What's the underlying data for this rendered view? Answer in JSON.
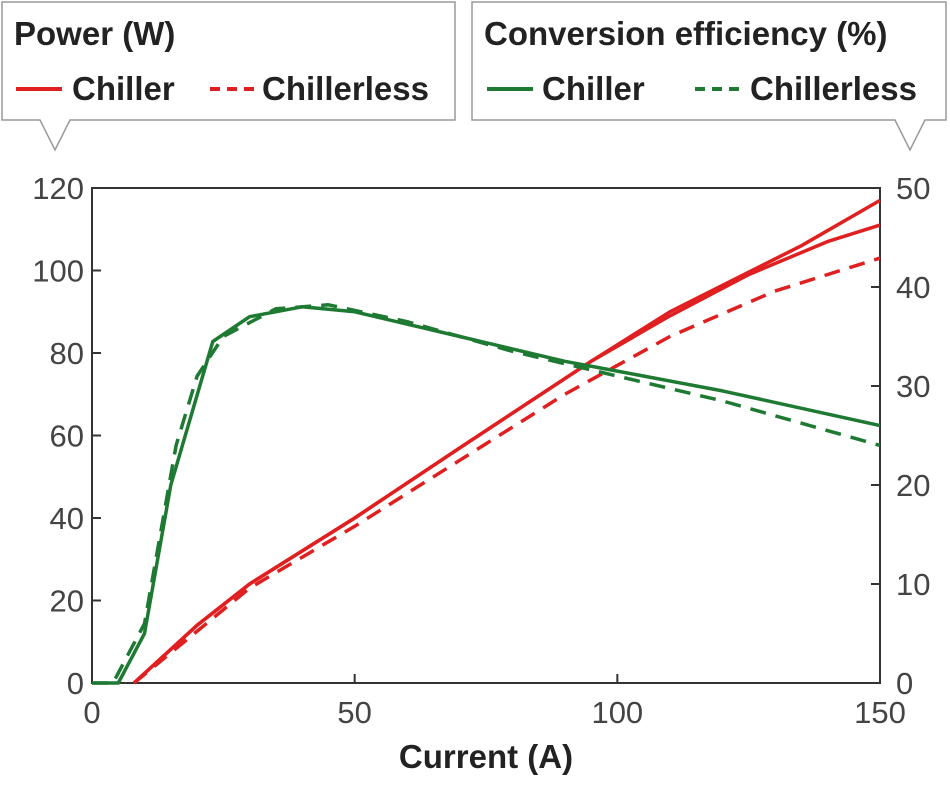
{
  "chart_data": {
    "type": "line",
    "xlabel": "Current (A)",
    "xlim": [
      0,
      150
    ],
    "xticks": [
      0,
      50,
      100,
      150
    ],
    "ylim_left": [
      0,
      120
    ],
    "yticks_left": [
      0,
      20,
      40,
      60,
      80,
      100,
      120
    ],
    "ylim_right": [
      0,
      50
    ],
    "yticks_right": [
      0,
      10,
      20,
      30,
      40,
      50
    ],
    "grid": false,
    "legends": [
      {
        "title": "Power (W)",
        "entries": [
          {
            "label": "Chiller",
            "style": "solid"
          },
          {
            "label": "Chillerless",
            "style": "dashed"
          }
        ],
        "color": "#e02020",
        "placement": "top-left"
      },
      {
        "title": "Conversion efficiency (%)",
        "entries": [
          {
            "label": "Chiller",
            "style": "solid"
          },
          {
            "label": "Chillerless",
            "style": "dashed"
          }
        ],
        "color": "#1e7a32",
        "placement": "top-right"
      }
    ],
    "series": [
      {
        "name": "Chiller",
        "quantity": "power",
        "axis": "left",
        "color": "#e02020",
        "dash": false,
        "x": [
          8,
          20,
          30,
          50,
          70,
          95,
          110,
          135,
          150
        ],
        "y": [
          0,
          14,
          24,
          40,
          57,
          78,
          90,
          106,
          117
        ]
      },
      {
        "name": "Chiller",
        "quantity": "power",
        "axis": "left",
        "color": "#e02020",
        "dash": false,
        "x": [
          8,
          20,
          30,
          50,
          70,
          95,
          110,
          125,
          140,
          150
        ],
        "y": [
          0,
          14,
          24,
          40,
          57,
          78,
          89,
          99,
          107,
          111
        ]
      },
      {
        "name": "Chillerless",
        "quantity": "power",
        "axis": "left",
        "color": "#e02020",
        "dash": true,
        "x": [
          8,
          30,
          50,
          70,
          90,
          110,
          130,
          150
        ],
        "y": [
          0,
          23,
          38,
          54,
          70,
          84,
          95,
          103
        ]
      },
      {
        "name": "Chiller",
        "quantity": "efficiency",
        "axis": "right",
        "color": "#1e7a32",
        "dash": false,
        "x": [
          0,
          5,
          10,
          15,
          23,
          30,
          40,
          50,
          70,
          90,
          100,
          120,
          150
        ],
        "y": [
          0,
          0,
          5,
          20,
          34.5,
          37,
          38,
          37.5,
          35,
          32.5,
          31.5,
          29.5,
          26
        ]
      },
      {
        "name": "Chillerless",
        "quantity": "efficiency",
        "axis": "right",
        "color": "#1e7a32",
        "dash": true,
        "x": [
          0,
          4,
          10,
          13,
          16,
          20,
          25,
          35,
          45,
          60,
          80,
          100,
          120,
          150
        ],
        "y": [
          0,
          0,
          6,
          15,
          24,
          31,
          35,
          37.8,
          38.2,
          36.5,
          33.5,
          31,
          28.5,
          24
        ]
      }
    ]
  }
}
